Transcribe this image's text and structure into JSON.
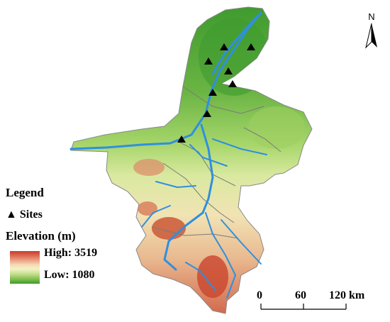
{
  "legend": {
    "title": "Legend",
    "sites_label": "Sites",
    "sites_symbol": "▲",
    "elevation_title": "Elevation (m)",
    "high_label": "High: 3519",
    "low_label": "Low: 1080",
    "high_value": 3519,
    "low_value": 1080,
    "ramp_colors": [
      "#c93a2a",
      "#f4f2c6",
      "#3a9a2c"
    ]
  },
  "scale_bar": {
    "ticks": [
      "0",
      "60",
      "120 km"
    ]
  },
  "north_arrow": {
    "label": "N"
  },
  "colors": {
    "river": "#2f8fe0",
    "boundary": "#7a7a7a",
    "site": "#000000"
  }
}
